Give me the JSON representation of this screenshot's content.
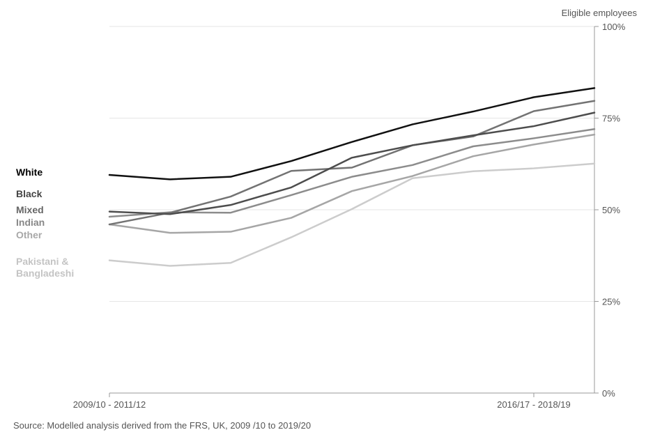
{
  "chart_data": {
    "type": "line",
    "title": "",
    "ylabel": "Eligible employees",
    "xlabel": "",
    "ylim": [
      0,
      100
    ],
    "y_ticks": [
      0,
      25,
      50,
      75,
      100
    ],
    "y_tick_labels": [
      "0%",
      "25%",
      "50%",
      "75%",
      "100%"
    ],
    "grid": true,
    "x": [
      0,
      1,
      2,
      3,
      4,
      5,
      6,
      7,
      8
    ],
    "x_tick_labels": [
      {
        "at": 0,
        "label": "2009/10 - 2011/12"
      },
      {
        "at": 7,
        "label": "2016/17 - 2018/19"
      }
    ],
    "series": [
      {
        "name": "White",
        "color": "#111111",
        "values": [
          59.5,
          58.3,
          59.0,
          63.3,
          68.5,
          73.3,
          76.8,
          80.7,
          83.2
        ]
      },
      {
        "name": "Black",
        "color": "#4d4d4d",
        "values": [
          49.5,
          48.8,
          51.3,
          56.1,
          64.2,
          67.6,
          70.3,
          72.8,
          76.5
        ]
      },
      {
        "name": "Mixed",
        "color": "#737373",
        "values": [
          46.0,
          49.2,
          53.6,
          60.6,
          61.5,
          67.6,
          70.0,
          76.9,
          79.7
        ]
      },
      {
        "name": "Indian",
        "color": "#8c8c8c",
        "values": [
          48.1,
          49.3,
          49.2,
          54.0,
          59.0,
          62.2,
          67.3,
          69.5,
          72.0
        ]
      },
      {
        "name": "Other",
        "color": "#a6a6a6",
        "values": [
          46.0,
          43.7,
          44.0,
          47.8,
          55.1,
          59.2,
          64.6,
          67.8,
          70.5
        ]
      },
      {
        "name": "Pakistani & Bangladeshi",
        "color": "#cccccc",
        "values": [
          36.2,
          34.7,
          35.5,
          42.5,
          50.2,
          58.6,
          60.5,
          61.3,
          62.6
        ]
      }
    ],
    "legend": {
      "placement": "left",
      "entries": [
        {
          "name": "White",
          "label": "White",
          "color": "#000000"
        },
        {
          "name": "Black",
          "label": "Black",
          "color": "#444444"
        },
        {
          "name": "Mixed",
          "label": "Mixed",
          "color": "#666666"
        },
        {
          "name": "Indian",
          "label": "Indian",
          "color": "#888888"
        },
        {
          "name": "Other",
          "label": "Other",
          "color": "#a8a8a8"
        },
        {
          "name": "Pakistani & Bangladeshi",
          "label": "Pakistani & Bangladeshi",
          "color": "#c4c4c4"
        }
      ]
    },
    "source": "Source: Modelled analysis derived from the FRS, UK, 2009 /10 to 2019/20"
  }
}
